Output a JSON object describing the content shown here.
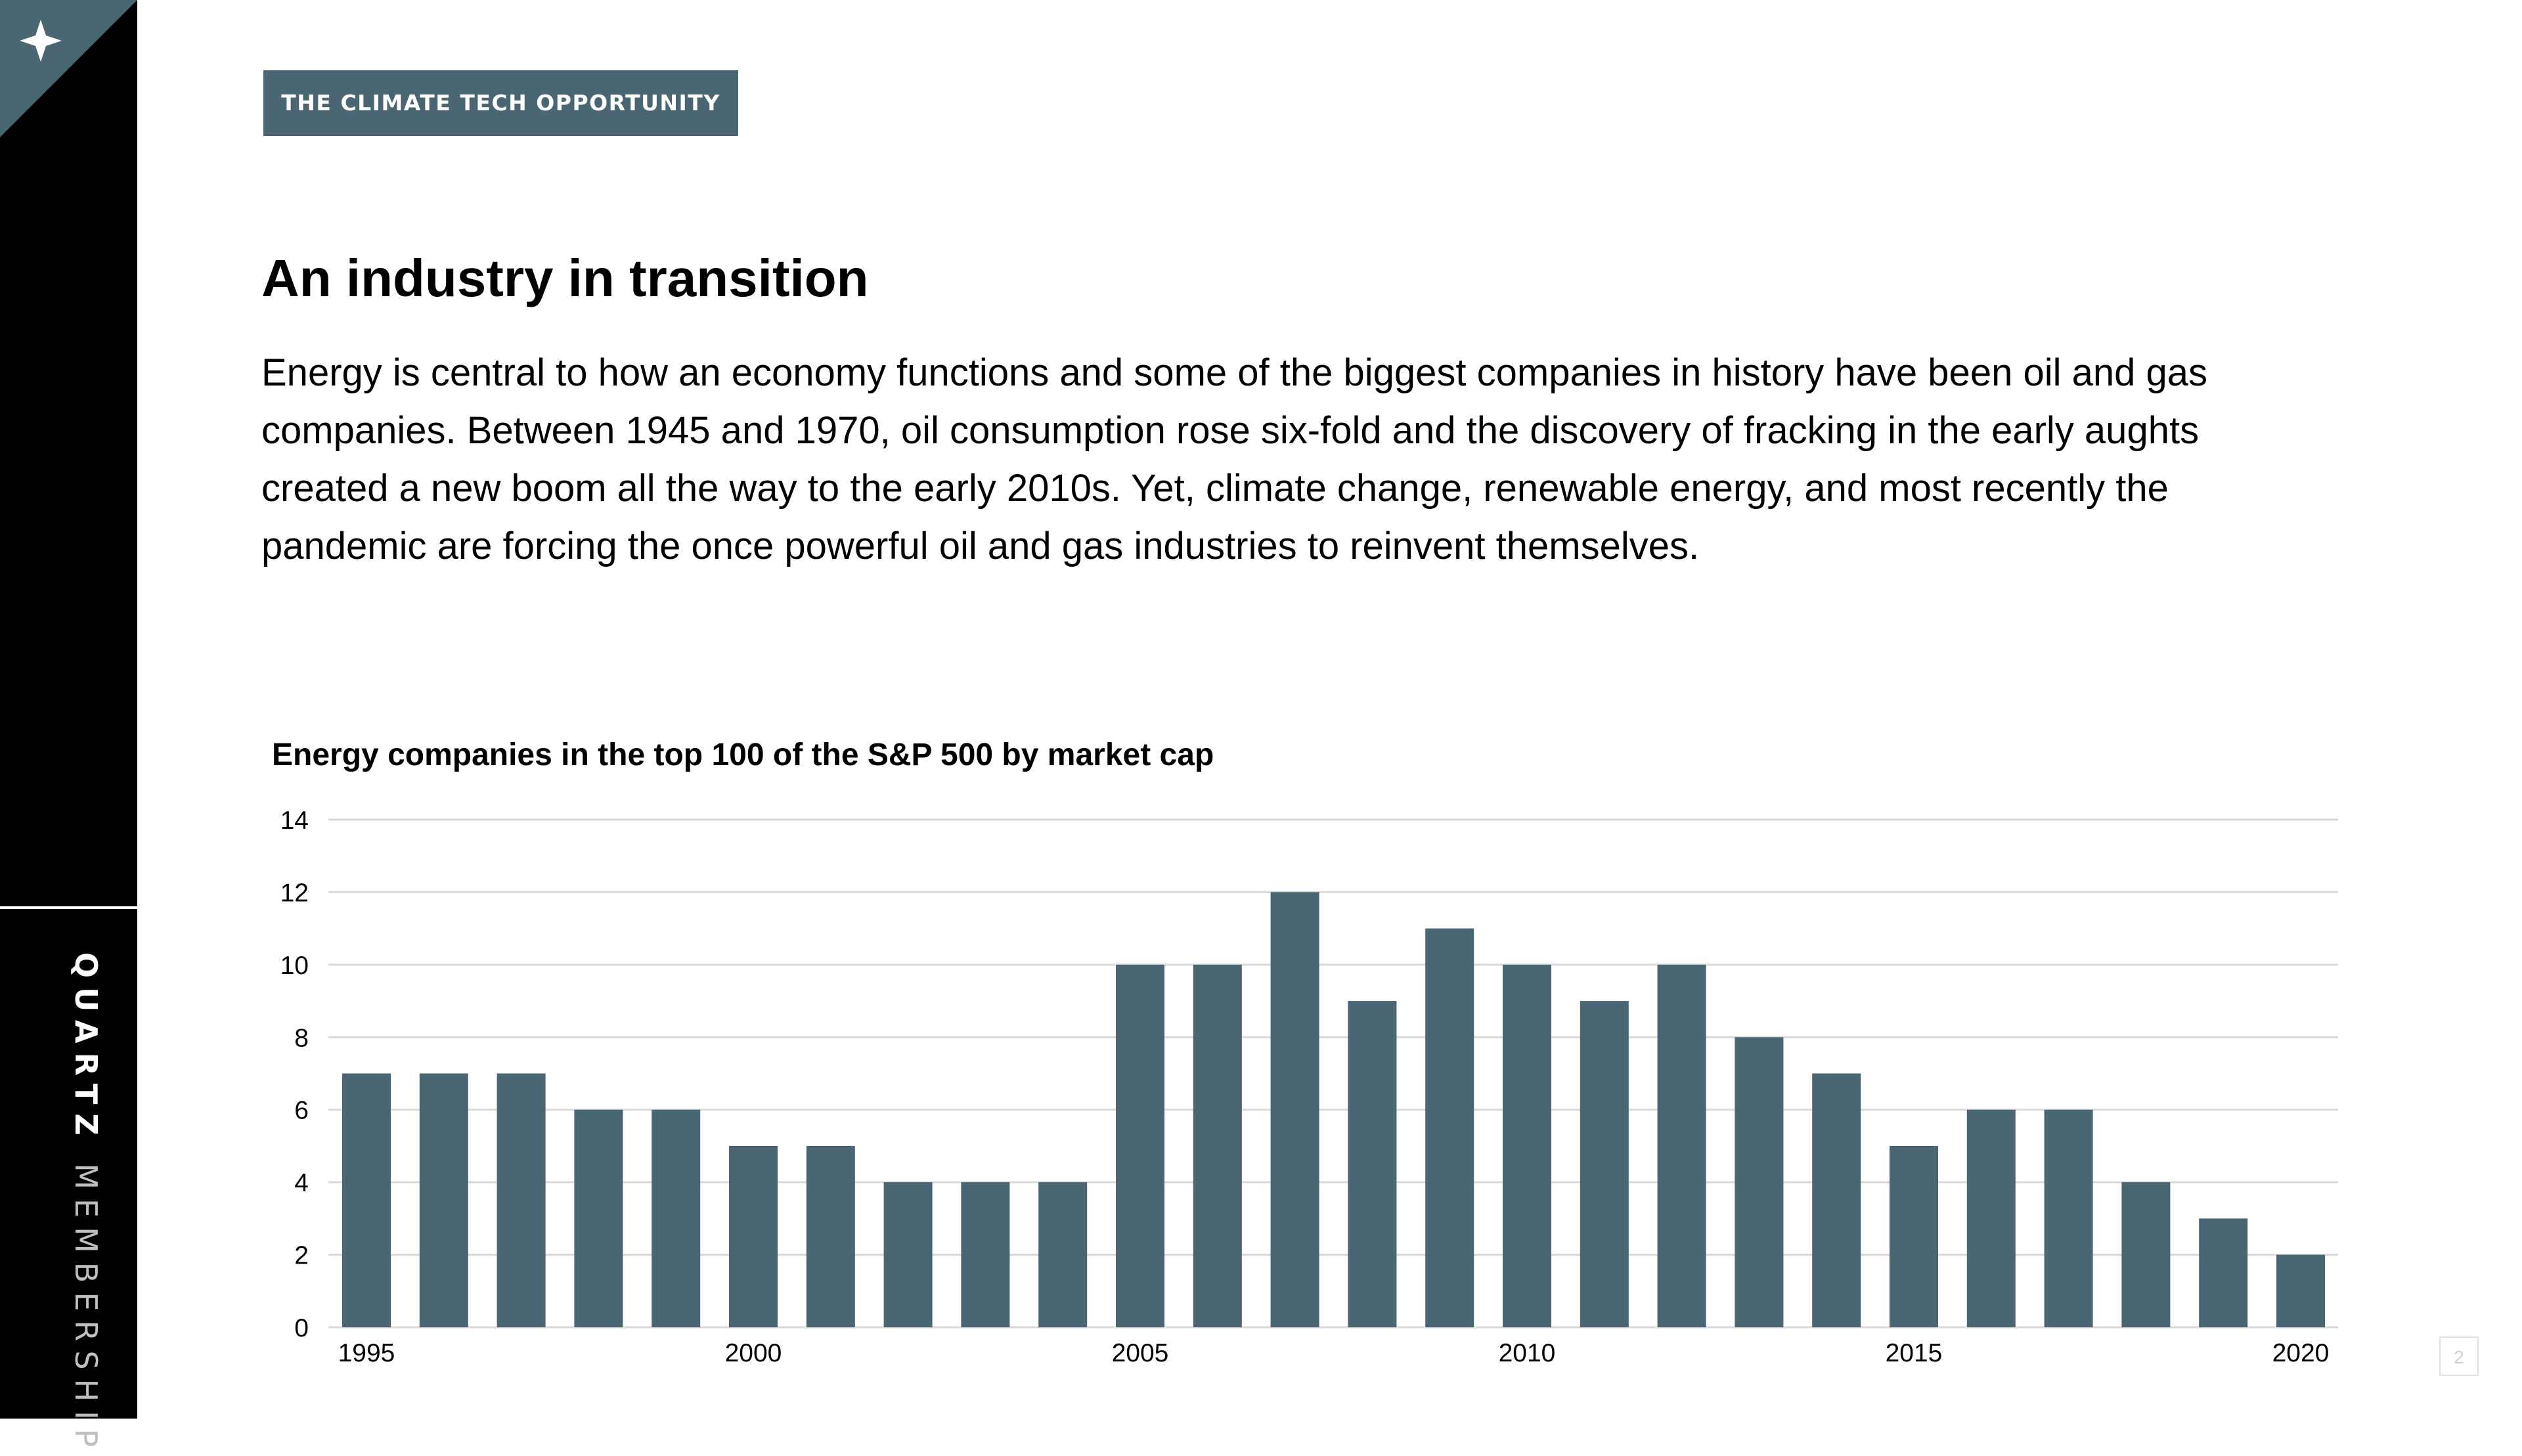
{
  "sidebar": {
    "logo_icon": "sparkle-icon",
    "brand_strong": "QUARTZ",
    "brand_light": "MEMBERSHIP"
  },
  "section_tag": "THE CLIMATE TECH OPPORTUNITY",
  "title": "An industry in transition",
  "intro": "Energy is central to how an economy functions and some of the biggest companies in history have been oil and gas companies. Between 1945 and 1970, oil consumption rose six-fold and the discovery of fracking in the early aughts created a new boom all the way to the early 2010s. Yet, climate change, renewable energy, and most recently the pandemic are forcing the once powerful oil and gas industries to reinvent themselves.",
  "page_number": "2",
  "colors": {
    "accent": "#4a6673",
    "sidebar": "#000000",
    "gridline": "#d9d9d9"
  },
  "chart_data": {
    "type": "bar",
    "title": "Energy companies in the top 100 of the S&P 500 by market cap",
    "xlabel": "",
    "ylabel": "",
    "categories": [
      "1995",
      "1996",
      "1997",
      "1998",
      "1999",
      "2000",
      "2001",
      "2002",
      "2003",
      "2004",
      "2005",
      "2006",
      "2007",
      "2008",
      "2009",
      "2010",
      "2011",
      "2012",
      "2013",
      "2014",
      "2015",
      "2016",
      "2017",
      "2018",
      "2019",
      "2020"
    ],
    "values": [
      7,
      7,
      7,
      6,
      6,
      5,
      5,
      4,
      4,
      4,
      10,
      10,
      12,
      9,
      11,
      10,
      9,
      10,
      8,
      7,
      5,
      6,
      6,
      4,
      3,
      2
    ],
    "x_tick_labels": [
      "1995",
      "2000",
      "2005",
      "2010",
      "2015",
      "2020"
    ],
    "y_ticks": [
      0,
      2,
      4,
      6,
      8,
      10,
      12,
      14
    ],
    "ylim": [
      0,
      14
    ],
    "grid": true,
    "legend": "none",
    "bar_color": "#4a6673"
  }
}
